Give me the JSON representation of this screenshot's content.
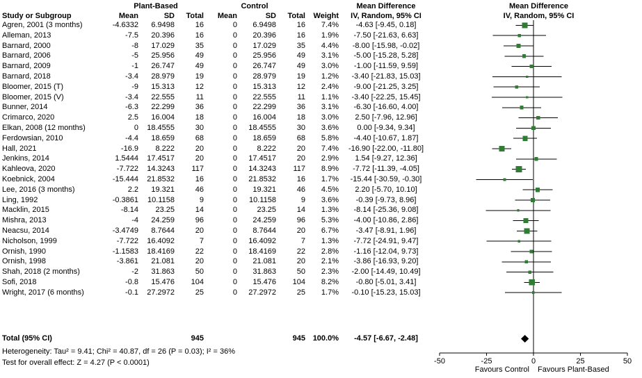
{
  "header": {
    "group1": "Plant-Based",
    "group2": "Control",
    "md_text_col": "Mean Difference",
    "md_plot_col": "Mean Difference",
    "cols": {
      "study": "Study or Subgroup",
      "mean": "Mean",
      "sd": "SD",
      "total": "Total",
      "weight": "Weight",
      "ci": "IV, Random, 95% CI"
    }
  },
  "colors": {
    "marker": "#2e7d32",
    "diamond": "#000000",
    "line": "#000000",
    "background": "#ffffff"
  },
  "chart_data": {
    "type": "forest",
    "effect_measure": "Mean Difference, IV, Random, 95% CI",
    "axis": {
      "min": -50,
      "max": 50,
      "ticks": [
        -50,
        -25,
        0,
        25,
        50
      ],
      "left_label": "Favours Control",
      "right_label": "Favours Plant-Based"
    },
    "studies": [
      {
        "name": "Agren, 2001 (3 months)",
        "mean1": "-4.6332",
        "sd1": "6.9498",
        "n1": "16",
        "mean2": "0",
        "sd2": "6.9498",
        "n2": "16",
        "weight": "7.4%",
        "ci_text": "-4.63 [-9.45, 0.18]",
        "est": -4.63,
        "lo": -9.45,
        "hi": 0.18,
        "w": 7.4
      },
      {
        "name": "Alleman, 2013",
        "mean1": "-7.5",
        "sd1": "20.396",
        "n1": "16",
        "mean2": "0",
        "sd2": "20.396",
        "n2": "16",
        "weight": "1.9%",
        "ci_text": "-7.50 [-21.63, 6.63]",
        "est": -7.5,
        "lo": -21.63,
        "hi": 6.63,
        "w": 1.9
      },
      {
        "name": "Barnard, 2000",
        "mean1": "-8",
        "sd1": "17.029",
        "n1": "35",
        "mean2": "0",
        "sd2": "17.029",
        "n2": "35",
        "weight": "4.4%",
        "ci_text": "-8.00 [-15.98, -0.02]",
        "est": -8,
        "lo": -15.98,
        "hi": -0.02,
        "w": 4.4
      },
      {
        "name": "Barnard, 2006",
        "mean1": "-5",
        "sd1": "25.956",
        "n1": "49",
        "mean2": "0",
        "sd2": "25.956",
        "n2": "49",
        "weight": "3.1%",
        "ci_text": "-5.00 [-15.28, 5.28]",
        "est": -5,
        "lo": -15.28,
        "hi": 5.28,
        "w": 3.1
      },
      {
        "name": "Barnard, 2009",
        "mean1": "-1",
        "sd1": "26.747",
        "n1": "49",
        "mean2": "0",
        "sd2": "26.747",
        "n2": "49",
        "weight": "3.0%",
        "ci_text": "-1.00 [-11.59, 9.59]",
        "est": -1,
        "lo": -11.59,
        "hi": 9.59,
        "w": 3.0
      },
      {
        "name": "Barnard, 2018",
        "mean1": "-3.4",
        "sd1": "28.979",
        "n1": "19",
        "mean2": "0",
        "sd2": "28.979",
        "n2": "19",
        "weight": "1.2%",
        "ci_text": "-3.40 [-21.83, 15.03]",
        "est": -3.4,
        "lo": -21.83,
        "hi": 15.03,
        "w": 1.2
      },
      {
        "name": "Bloomer, 2015 (T)",
        "mean1": "-9",
        "sd1": "15.313",
        "n1": "12",
        "mean2": "0",
        "sd2": "15.313",
        "n2": "12",
        "weight": "2.4%",
        "ci_text": "-9.00 [-21.25, 3.25]",
        "est": -9,
        "lo": -21.25,
        "hi": 3.25,
        "w": 2.4
      },
      {
        "name": "Bloomer, 2015 (V)",
        "mean1": "-3.4",
        "sd1": "22.555",
        "n1": "11",
        "mean2": "0",
        "sd2": "22.555",
        "n2": "11",
        "weight": "1.1%",
        "ci_text": "-3.40 [-22.25, 15.45]",
        "est": -3.4,
        "lo": -22.25,
        "hi": 15.45,
        "w": 1.1
      },
      {
        "name": "Bunner, 2014",
        "mean1": "-6.3",
        "sd1": "22.299",
        "n1": "36",
        "mean2": "0",
        "sd2": "22.299",
        "n2": "36",
        "weight": "3.1%",
        "ci_text": "-6.30 [-16.60, 4.00]",
        "est": -6.3,
        "lo": -16.6,
        "hi": 4.0,
        "w": 3.1
      },
      {
        "name": "Crimarco, 2020",
        "mean1": "2.5",
        "sd1": "16.004",
        "n1": "18",
        "mean2": "0",
        "sd2": "16.004",
        "n2": "18",
        "weight": "3.0%",
        "ci_text": "2.50 [-7.96, 12.96]",
        "est": 2.5,
        "lo": -7.96,
        "hi": 12.96,
        "w": 3.0
      },
      {
        "name": "Elkan, 2008 (12 months)",
        "mean1": "0",
        "sd1": "18.4555",
        "n1": "30",
        "mean2": "0",
        "sd2": "18.4555",
        "n2": "30",
        "weight": "3.6%",
        "ci_text": "0.00 [-9.34, 9.34]",
        "est": 0,
        "lo": -9.34,
        "hi": 9.34,
        "w": 3.6
      },
      {
        "name": "Ferdowsian, 2010",
        "mean1": "-4.4",
        "sd1": "18.659",
        "n1": "68",
        "mean2": "0",
        "sd2": "18.659",
        "n2": "68",
        "weight": "5.8%",
        "ci_text": "-4.40 [-10.67, 1.87]",
        "est": -4.4,
        "lo": -10.67,
        "hi": 1.87,
        "w": 5.8
      },
      {
        "name": "Hall, 2021",
        "mean1": "-16.9",
        "sd1": "8.222",
        "n1": "20",
        "mean2": "0",
        "sd2": "8.222",
        "n2": "20",
        "weight": "7.4%",
        "ci_text": "-16.90 [-22.00, -11.80]",
        "est": -16.9,
        "lo": -22.0,
        "hi": -11.8,
        "w": 7.4
      },
      {
        "name": "Jenkins, 2014",
        "mean1": "1.5444",
        "sd1": "17.4517",
        "n1": "20",
        "mean2": "0",
        "sd2": "17.4517",
        "n2": "20",
        "weight": "2.9%",
        "ci_text": "1.54 [-9.27, 12.36]",
        "est": 1.54,
        "lo": -9.27,
        "hi": 12.36,
        "w": 2.9
      },
      {
        "name": "Kahleova, 2020",
        "mean1": "-7.722",
        "sd1": "14.3243",
        "n1": "117",
        "mean2": "0",
        "sd2": "14.3243",
        "n2": "117",
        "weight": "8.9%",
        "ci_text": "-7.72 [-11.39, -4.05]",
        "est": -7.72,
        "lo": -11.39,
        "hi": -4.05,
        "w": 8.9
      },
      {
        "name": "Koebnick, 2004",
        "mean1": "-15.444",
        "sd1": "21.8532",
        "n1": "16",
        "mean2": "0",
        "sd2": "21.8532",
        "n2": "16",
        "weight": "1.7%",
        "ci_text": "-15.44 [-30.59, -0.30]",
        "est": -15.44,
        "lo": -30.59,
        "hi": -0.3,
        "w": 1.7
      },
      {
        "name": "Lee, 2016 (3 months)",
        "mean1": "2.2",
        "sd1": "19.321",
        "n1": "46",
        "mean2": "0",
        "sd2": "19.321",
        "n2": "46",
        "weight": "4.5%",
        "ci_text": "2.20 [-5.70, 10.10]",
        "est": 2.2,
        "lo": -5.7,
        "hi": 10.1,
        "w": 4.5
      },
      {
        "name": "Ling, 1992",
        "mean1": "-0.3861",
        "sd1": "10.1158",
        "n1": "9",
        "mean2": "0",
        "sd2": "10.1158",
        "n2": "9",
        "weight": "3.6%",
        "ci_text": "-0.39 [-9.73, 8.96]",
        "est": -0.39,
        "lo": -9.73,
        "hi": 8.96,
        "w": 3.6
      },
      {
        "name": "Macklin, 2015",
        "mean1": "-8.14",
        "sd1": "23.25",
        "n1": "14",
        "mean2": "0",
        "sd2": "23.25",
        "n2": "14",
        "weight": "1.3%",
        "ci_text": "-8.14 [-25.36, 9.08]",
        "est": -8.14,
        "lo": -25.36,
        "hi": 9.08,
        "w": 1.3
      },
      {
        "name": "Mishra, 2013",
        "mean1": "-4",
        "sd1": "24.259",
        "n1": "96",
        "mean2": "0",
        "sd2": "24.259",
        "n2": "96",
        "weight": "5.3%",
        "ci_text": "-4.00 [-10.86, 2.86]",
        "est": -4,
        "lo": -10.86,
        "hi": 2.86,
        "w": 5.3
      },
      {
        "name": "Neacsu, 2014",
        "mean1": "-3.4749",
        "sd1": "8.7644",
        "n1": "20",
        "mean2": "0",
        "sd2": "8.7644",
        "n2": "20",
        "weight": "6.7%",
        "ci_text": "-3.47 [-8.91, 1.96]",
        "est": -3.47,
        "lo": -8.91,
        "hi": 1.96,
        "w": 6.7
      },
      {
        "name": "Nicholson, 1999",
        "mean1": "-7.722",
        "sd1": "16.4092",
        "n1": "7",
        "mean2": "0",
        "sd2": "16.4092",
        "n2": "7",
        "weight": "1.3%",
        "ci_text": "-7.72 [-24.91, 9.47]",
        "est": -7.72,
        "lo": -24.91,
        "hi": 9.47,
        "w": 1.3
      },
      {
        "name": "Ornish, 1990",
        "mean1": "-1.1583",
        "sd1": "18.4169",
        "n1": "22",
        "mean2": "0",
        "sd2": "18.4169",
        "n2": "22",
        "weight": "2.8%",
        "ci_text": "-1.16 [-12.04, 9.73]",
        "est": -1.16,
        "lo": -12.04,
        "hi": 9.73,
        "w": 2.8
      },
      {
        "name": "Ornish, 1998",
        "mean1": "-3.861",
        "sd1": "21.081",
        "n1": "20",
        "mean2": "0",
        "sd2": "21.081",
        "n2": "20",
        "weight": "2.1%",
        "ci_text": "-3.86 [-16.93, 9.20]",
        "est": -3.86,
        "lo": -16.93,
        "hi": 9.2,
        "w": 2.1
      },
      {
        "name": "Shah, 2018 (2 months)",
        "mean1": "-2",
        "sd1": "31.863",
        "n1": "50",
        "mean2": "0",
        "sd2": "31.863",
        "n2": "50",
        "weight": "2.3%",
        "ci_text": "-2.00 [-14.49, 10.49]",
        "est": -2,
        "lo": -14.49,
        "hi": 10.49,
        "w": 2.3
      },
      {
        "name": "Sofi, 2018",
        "mean1": "-0.8",
        "sd1": "15.476",
        "n1": "104",
        "mean2": "0",
        "sd2": "15.476",
        "n2": "104",
        "weight": "8.2%",
        "ci_text": "-0.80 [-5.01, 3.41]",
        "est": -0.8,
        "lo": -5.01,
        "hi": 3.41,
        "w": 8.2
      },
      {
        "name": "Wright, 2017 (6 months)",
        "mean1": "-0.1",
        "sd1": "27.2972",
        "n1": "25",
        "mean2": "0",
        "sd2": "27.2972",
        "n2": "25",
        "weight": "1.7%",
        "ci_text": "-0.10 [-15.23, 15.03]",
        "est": -0.1,
        "lo": -15.23,
        "hi": 15.03,
        "w": 1.7
      }
    ],
    "total": {
      "label": "Total (95% CI)",
      "n1": "945",
      "n2": "945",
      "weight": "100.0%",
      "ci_text": "-4.57 [-6.67, -2.48]",
      "est": -4.57,
      "lo": -6.67,
      "hi": -2.48
    },
    "footnotes": [
      "Heterogeneity: Tau² = 9.41; Chi² = 40.87, df = 26 (P = 0.03); I² = 36%",
      "Test for overall effect: Z = 4.27 (P < 0.0001)"
    ]
  }
}
